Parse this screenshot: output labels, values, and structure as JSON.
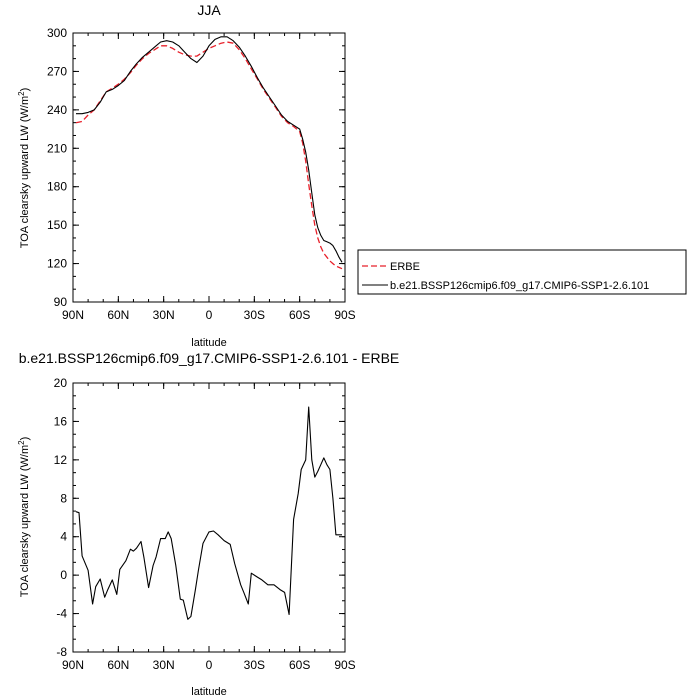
{
  "chart_data": [
    {
      "type": "line",
      "title": "JJA",
      "xlabel": "latitude",
      "ylabel": "TOA clearsky upward LW (W/m",
      "ylabel_sup": "2",
      "ylabel_tail": ")",
      "xlim": [
        90,
        -90
      ],
      "ylim": [
        90,
        300
      ],
      "x_ticks": [
        90,
        60,
        30,
        0,
        -30,
        -60,
        -90
      ],
      "x_tick_labels": [
        "90N",
        "60N",
        "30N",
        "0",
        "30S",
        "60S",
        "90S"
      ],
      "y_ticks": [
        90,
        120,
        150,
        180,
        210,
        240,
        270,
        300
      ],
      "y_tick_labels": [
        "90",
        "120",
        "150",
        "180",
        "210",
        "240",
        "270",
        "300"
      ],
      "grid": false,
      "legend": "outside-right",
      "series": [
        {
          "name": "ERBE",
          "color": "#e8202a",
          "dash": "dashed",
          "x": [
            88,
            84,
            80,
            76,
            72,
            68,
            64,
            60,
            56,
            52,
            48,
            44,
            40,
            36,
            32,
            28,
            24,
            20,
            16,
            12,
            8,
            4,
            0,
            -4,
            -8,
            -12,
            -16,
            -20,
            -24,
            -28,
            -32,
            -36,
            -40,
            -44,
            -48,
            -52,
            -56,
            -60,
            -62,
            -64,
            -66,
            -68,
            -70,
            -72,
            -74,
            -76,
            -78,
            -80,
            -82,
            -84,
            -86,
            -88
          ],
          "y": [
            230,
            231,
            236,
            240,
            247,
            254,
            257,
            260,
            264,
            269,
            275,
            280,
            284,
            287,
            290,
            290,
            288,
            285,
            283,
            282,
            282,
            285,
            288,
            290,
            292,
            293,
            292,
            287,
            280,
            272,
            264,
            256,
            249,
            242,
            235,
            230,
            227,
            223,
            214,
            200,
            182,
            165,
            150,
            140,
            133,
            128,
            125,
            122,
            120,
            118,
            117,
            116
          ]
        },
        {
          "name": "b.e21.BSSP126cmip6.f09_g17.CMIP6-SSP1-2.6.101",
          "color": "#000000",
          "dash": "solid",
          "x": [
            88,
            84,
            80,
            76,
            72,
            68,
            64,
            60,
            56,
            52,
            48,
            44,
            40,
            36,
            32,
            28,
            24,
            20,
            16,
            12,
            8,
            4,
            0,
            -4,
            -8,
            -12,
            -16,
            -20,
            -24,
            -28,
            -32,
            -36,
            -40,
            -44,
            -48,
            -52,
            -56,
            -60,
            -62,
            -64,
            -66,
            -68,
            -70,
            -72,
            -74,
            -76,
            -78,
            -80,
            -82,
            -84,
            -86,
            -88
          ],
          "y": [
            237,
            237,
            238,
            240,
            246,
            254,
            256,
            259,
            263,
            270,
            276,
            281,
            285,
            289,
            293,
            294,
            293,
            290,
            285,
            280,
            277,
            282,
            290,
            295,
            297,
            297,
            294,
            289,
            282,
            274,
            265,
            257,
            250,
            243,
            236,
            231,
            228,
            225,
            217,
            207,
            193,
            175,
            158,
            148,
            142,
            138,
            137,
            136,
            134,
            130,
            125,
            121
          ]
        }
      ]
    },
    {
      "type": "line",
      "title": "b.e21.BSSP126cmip6.f09_g17.CMIP6-SSP1-2.6.101 - ERBE",
      "xlabel": "latitude",
      "ylabel": "TOA clearsky upward LW (W/m",
      "ylabel_sup": "2",
      "ylabel_tail": ")",
      "xlim": [
        90,
        -90
      ],
      "ylim": [
        -8,
        20
      ],
      "x_ticks": [
        90,
        60,
        30,
        0,
        -30,
        -60,
        -90
      ],
      "x_tick_labels": [
        "90N",
        "60N",
        "30N",
        "0",
        "30S",
        "60S",
        "90S"
      ],
      "y_ticks": [
        -8,
        -4,
        0,
        4,
        8,
        12,
        16,
        20
      ],
      "y_tick_labels": [
        "-8",
        "-4",
        "0",
        "4",
        "8",
        "12",
        "16",
        "20"
      ],
      "grid": false,
      "series": [
        {
          "color": "#000000",
          "dash": "solid",
          "x": [
            88,
            86,
            84,
            80,
            77,
            75,
            72,
            69,
            67,
            64,
            61,
            59,
            55,
            52,
            50,
            48,
            45,
            43,
            40,
            37,
            35,
            32,
            29,
            27,
            25,
            22,
            19,
            17,
            14,
            12,
            9,
            7,
            4,
            0,
            -3,
            -6,
            -10,
            -14,
            -17,
            -21,
            -23,
            -26,
            -28,
            -32,
            -35,
            -39,
            -43,
            -47,
            -50,
            -53,
            -56,
            -59,
            -61,
            -64,
            -66,
            -68,
            -70,
            -72,
            -74,
            -76,
            -78,
            -80,
            -82,
            -84,
            -86,
            -88
          ],
          "y": [
            6.6,
            6.5,
            2,
            0.5,
            -3,
            -1.2,
            -0.4,
            -2.3,
            -1.5,
            -0.5,
            -2.0,
            0.6,
            1.5,
            2.7,
            2.5,
            2.8,
            3.5,
            1.8,
            -1.3,
            1.0,
            1.9,
            3.8,
            3.8,
            4.5,
            3.8,
            1.0,
            -2.5,
            -2.6,
            -4.6,
            -4.3,
            -1.5,
            0.5,
            3.3,
            4.5,
            4.6,
            4.2,
            3.6,
            3.2,
            1.2,
            -1.0,
            -1.8,
            -3.0,
            0.2,
            -0.2,
            -0.5,
            -1.0,
            -1.0,
            -1.5,
            -1.8,
            -4.1,
            5.8,
            8.5,
            11.0,
            12.0,
            17.5,
            12.0,
            10.2,
            10.8,
            11.5,
            12.2,
            11.5,
            11.0,
            8.0,
            4.2,
            4.2,
            4.2
          ]
        }
      ]
    }
  ]
}
